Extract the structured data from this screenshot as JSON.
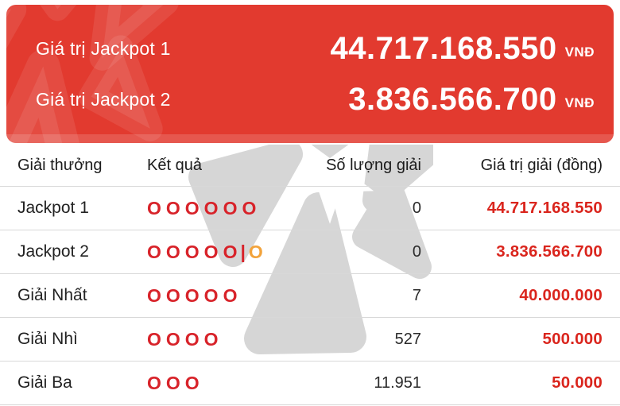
{
  "colors": {
    "banner_red": "#e23a2f",
    "value_red": "#da251d",
    "ball_red": "#d8232a",
    "ball_bonus_orange": "#f2a33c",
    "watermark_gray": "#d6d6d6",
    "divider": "#d8d8d8"
  },
  "banner": {
    "items": [
      {
        "label": "Giá trị Jackpot 1",
        "value": "44.717.168.550",
        "currency": "VNĐ"
      },
      {
        "label": "Giá trị Jackpot 2",
        "value": "3.836.566.700",
        "currency": "VNĐ"
      }
    ]
  },
  "watermark_icon": "vietlott-flower-logo",
  "table": {
    "headers": [
      "Giải thưởng",
      "Kết quả",
      "Số lượng giải",
      "Giá trị giải (đồng)"
    ],
    "rows": [
      {
        "prize": "Jackpot 1",
        "result": [
          {
            "ch": "O",
            "type": "main"
          },
          {
            "ch": "O",
            "type": "main"
          },
          {
            "ch": "O",
            "type": "main"
          },
          {
            "ch": "O",
            "type": "main"
          },
          {
            "ch": "O",
            "type": "main"
          },
          {
            "ch": "O",
            "type": "main"
          }
        ],
        "count": "0",
        "value": "44.717.168.550"
      },
      {
        "prize": "Jackpot 2",
        "result": [
          {
            "ch": "O",
            "type": "main"
          },
          {
            "ch": "O",
            "type": "main"
          },
          {
            "ch": "O",
            "type": "main"
          },
          {
            "ch": "O",
            "type": "main"
          },
          {
            "ch": "O",
            "type": "main"
          },
          {
            "ch": "|",
            "type": "sep"
          },
          {
            "ch": "O",
            "type": "bonus"
          }
        ],
        "count": "0",
        "value": "3.836.566.700"
      },
      {
        "prize": "Giải Nhất",
        "result": [
          {
            "ch": "O",
            "type": "main"
          },
          {
            "ch": "O",
            "type": "main"
          },
          {
            "ch": "O",
            "type": "main"
          },
          {
            "ch": "O",
            "type": "main"
          },
          {
            "ch": "O",
            "type": "main"
          }
        ],
        "count": "7",
        "value": "40.000.000"
      },
      {
        "prize": "Giải Nhì",
        "result": [
          {
            "ch": "O",
            "type": "main"
          },
          {
            "ch": "O",
            "type": "main"
          },
          {
            "ch": "O",
            "type": "main"
          },
          {
            "ch": "O",
            "type": "main"
          }
        ],
        "count": "527",
        "value": "500.000"
      },
      {
        "prize": "Giải Ba",
        "result": [
          {
            "ch": "O",
            "type": "main"
          },
          {
            "ch": "O",
            "type": "main"
          },
          {
            "ch": "O",
            "type": "main"
          }
        ],
        "count": "11.951",
        "value": "50.000"
      }
    ]
  }
}
